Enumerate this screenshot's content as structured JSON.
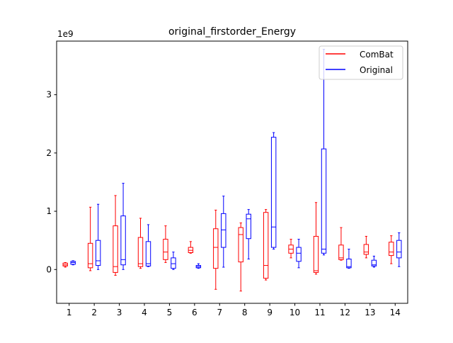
{
  "chart_data": {
    "type": "boxplot",
    "title": "original_firstorder_Energy",
    "xlabel": "",
    "ylabel": "",
    "y_offset_label": "1e9",
    "y_unit_scale": 1000000000,
    "ylim": [
      -0.58,
      3.92
    ],
    "xlim": [
      0.5,
      14.5
    ],
    "grid": false,
    "legend_position": "top-right",
    "categories": [
      "1",
      "2",
      "3",
      "4",
      "5",
      "6",
      "7",
      "8",
      "9",
      "10",
      "11",
      "12",
      "13",
      "14"
    ],
    "y_ticks": [
      {
        "value": 0,
        "label": "0"
      },
      {
        "value": 1,
        "label": "1"
      },
      {
        "value": 2,
        "label": "2"
      },
      {
        "value": 3,
        "label": "3"
      }
    ],
    "series": [
      {
        "name": "ComBat",
        "color": "#ff0000",
        "boxes": [
          {
            "whislo": 0.04,
            "q1": 0.06,
            "med": 0.08,
            "q3": 0.11,
            "whishi": 0.12
          },
          {
            "whislo": -0.02,
            "q1": 0.03,
            "med": 0.1,
            "q3": 0.45,
            "whishi": 1.07
          },
          {
            "whislo": -0.1,
            "q1": -0.05,
            "med": 0.05,
            "q3": 0.75,
            "whishi": 1.27
          },
          {
            "whislo": 0.02,
            "q1": 0.05,
            "med": 0.1,
            "q3": 0.55,
            "whishi": 0.88
          },
          {
            "whislo": 0.12,
            "q1": 0.17,
            "med": 0.3,
            "q3": 0.52,
            "whishi": 0.75
          },
          {
            "whislo": 0.28,
            "q1": 0.29,
            "med": 0.33,
            "q3": 0.38,
            "whishi": 0.48
          },
          {
            "whislo": -0.34,
            "q1": 0.02,
            "med": 0.38,
            "q3": 0.7,
            "whishi": 1.02
          },
          {
            "whislo": -0.37,
            "q1": 0.13,
            "med": 0.6,
            "q3": 0.72,
            "whishi": 0.8
          },
          {
            "whislo": -0.18,
            "q1": -0.15,
            "med": 0.07,
            "q3": 0.98,
            "whishi": 1.03
          },
          {
            "whislo": 0.2,
            "q1": 0.28,
            "med": 0.35,
            "q3": 0.42,
            "whishi": 0.52
          },
          {
            "whislo": -0.08,
            "q1": -0.05,
            "med": -0.02,
            "q3": 0.57,
            "whishi": 1.15
          },
          {
            "whislo": 0.16,
            "q1": 0.17,
            "med": 0.2,
            "q3": 0.42,
            "whishi": 0.72
          },
          {
            "whislo": 0.2,
            "q1": 0.26,
            "med": 0.3,
            "q3": 0.43,
            "whishi": 0.57
          },
          {
            "whislo": 0.1,
            "q1": 0.24,
            "med": 0.3,
            "q3": 0.47,
            "whishi": 0.58
          }
        ]
      },
      {
        "name": "Original",
        "color": "#0000ff",
        "boxes": [
          {
            "whislo": 0.08,
            "q1": 0.09,
            "med": 0.12,
            "q3": 0.14,
            "whishi": 0.15
          },
          {
            "whislo": 0.0,
            "q1": 0.07,
            "med": 0.15,
            "q3": 0.5,
            "whishi": 1.12
          },
          {
            "whislo": 0.0,
            "q1": 0.08,
            "med": 0.17,
            "q3": 0.92,
            "whishi": 1.48
          },
          {
            "whislo": 0.05,
            "q1": 0.06,
            "med": 0.1,
            "q3": 0.48,
            "whishi": 0.77
          },
          {
            "whislo": 0.0,
            "q1": 0.02,
            "med": 0.1,
            "q3": 0.2,
            "whishi": 0.3
          },
          {
            "whislo": 0.02,
            "q1": 0.03,
            "med": 0.05,
            "q3": 0.07,
            "whishi": 0.1
          },
          {
            "whislo": 0.04,
            "q1": 0.38,
            "med": 0.68,
            "q3": 0.96,
            "whishi": 1.26
          },
          {
            "whislo": 0.18,
            "q1": 0.53,
            "med": 0.87,
            "q3": 0.95,
            "whishi": 1.03
          },
          {
            "whislo": 0.35,
            "q1": 0.38,
            "med": 0.73,
            "q3": 2.27,
            "whishi": 2.35
          },
          {
            "whislo": 0.03,
            "q1": 0.14,
            "med": 0.28,
            "q3": 0.38,
            "whishi": 0.52
          },
          {
            "whislo": 0.25,
            "q1": 0.28,
            "med": 0.35,
            "q3": 2.07,
            "whishi": 3.78
          },
          {
            "whislo": 0.02,
            "q1": 0.03,
            "med": 0.05,
            "q3": 0.18,
            "whishi": 0.35
          },
          {
            "whislo": 0.04,
            "q1": 0.06,
            "med": 0.08,
            "q3": 0.16,
            "whishi": 0.23
          },
          {
            "whislo": 0.05,
            "q1": 0.2,
            "med": 0.3,
            "q3": 0.5,
            "whishi": 0.63
          }
        ]
      }
    ]
  }
}
